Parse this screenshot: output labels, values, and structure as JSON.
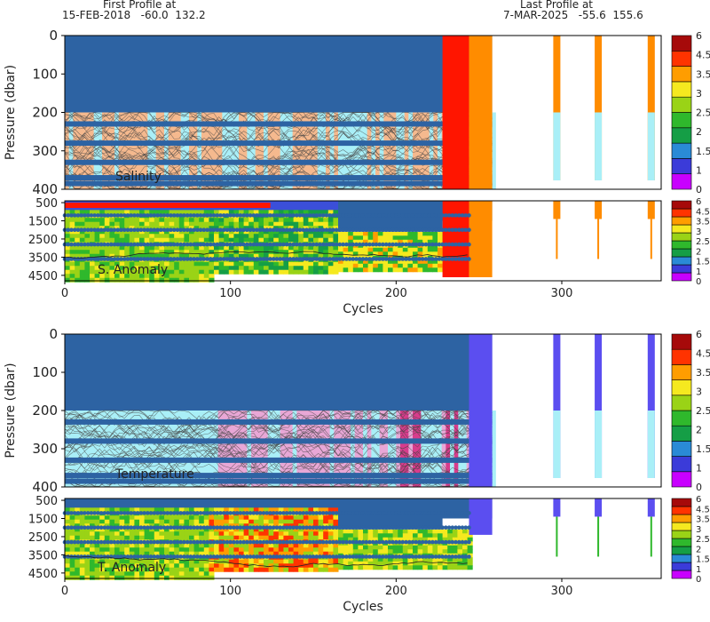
{
  "header": {
    "first_label": "First Profile at",
    "first_value": "15-FEB-2018   -60.0  132.2",
    "last_label": "Last Profile at",
    "last_value": "7-MAR-2025   -55.6  155.6"
  },
  "colorbar_ticks": [
    "6",
    "4.5",
    "3.5",
    "3",
    "2.5",
    "2",
    "1.5",
    "1",
    "0"
  ],
  "palette": [
    "#c800ff",
    "#3b3bd9",
    "#2a8ad6",
    "#159e46",
    "#2fb82c",
    "#9ad316",
    "#f5e91f",
    "#ff9d00",
    "#ff3300",
    "#a60a0a"
  ],
  "colors": {
    "deep_blue": "#2d63a3",
    "pale_cyan": "#a9eff7",
    "salmon": "#f5b98e",
    "pink": "#e8a7d6",
    "orange_cells": "#ff8c00",
    "red_cells": "#ff1500",
    "violet_cells": "#5b4ef0"
  },
  "chart_data": [
    {
      "type": "heatmap",
      "panel_label": "Salinity",
      "ylabel": "Pressure (dbar)",
      "y_ticks": [
        0,
        100,
        200,
        300,
        400
      ],
      "ylim": [
        0,
        400
      ],
      "xlim": [
        0,
        360
      ],
      "profiles_end_cycle": 258,
      "isolated_cycles": [
        297,
        322,
        354
      ]
    },
    {
      "type": "heatmap",
      "panel_label": "S. Anomaly",
      "xlabel": "Cycles",
      "x_ticks": [
        0,
        100,
        200,
        300
      ],
      "y_ticks": [
        500,
        1500,
        2500,
        3500,
        4500
      ],
      "ylim": [
        400,
        4800
      ],
      "xlim": [
        0,
        360
      ]
    },
    {
      "type": "heatmap",
      "panel_label": "Temperature",
      "ylabel": "Pressure (dbar)",
      "y_ticks": [
        0,
        100,
        200,
        300,
        400
      ],
      "ylim": [
        0,
        400
      ],
      "xlim": [
        0,
        360
      ]
    },
    {
      "type": "heatmap",
      "panel_label": "T. Anomaly",
      "xlabel": "Cycles",
      "x_ticks": [
        0,
        100,
        200,
        300
      ],
      "y_ticks": [
        500,
        1500,
        2500,
        3500,
        4500
      ],
      "ylim": [
        400,
        4800
      ],
      "xlim": [
        0,
        360
      ]
    }
  ]
}
